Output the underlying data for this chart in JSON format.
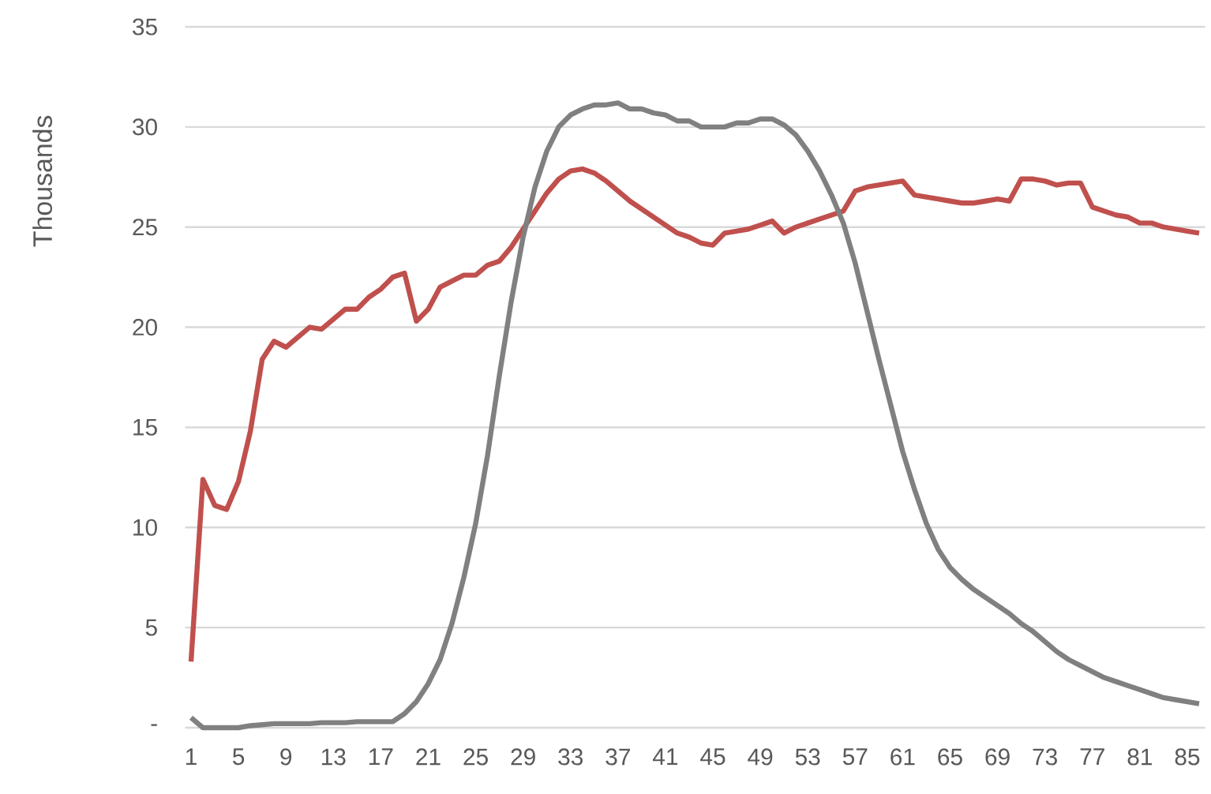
{
  "chart_data": {
    "type": "line",
    "ylabel": "Thousands",
    "categories": [
      "1",
      null,
      null,
      null,
      "5",
      null,
      null,
      null,
      "9",
      null,
      null,
      null,
      "13",
      null,
      null,
      null,
      "17",
      null,
      null,
      null,
      "21",
      null,
      null,
      null,
      "25",
      null,
      null,
      null,
      "29",
      null,
      null,
      null,
      "33",
      null,
      null,
      null,
      "37",
      null,
      null,
      null,
      "41",
      null,
      null,
      null,
      "45",
      null,
      null,
      null,
      "49",
      null,
      null,
      null,
      "53",
      null,
      null,
      null,
      "57",
      null,
      null,
      null,
      "61",
      null,
      null,
      null,
      "65",
      null,
      null,
      null,
      "69",
      null,
      null,
      null,
      "73",
      null,
      null,
      null,
      "77",
      null,
      null,
      null,
      "81",
      null,
      null,
      null,
      "85",
      null
    ],
    "series": [
      {
        "color": "#c0504d",
        "values": [
          3.3,
          12.4,
          11.1,
          10.9,
          12.3,
          14.8,
          18.4,
          19.3,
          19.0,
          19.5,
          20.0,
          19.9,
          20.4,
          20.9,
          20.9,
          21.5,
          21.9,
          22.5,
          22.7,
          20.3,
          20.9,
          22.0,
          22.3,
          22.6,
          22.6,
          23.1,
          23.3,
          24.0,
          24.9,
          25.8,
          26.7,
          27.4,
          27.8,
          27.9,
          27.7,
          27.3,
          26.8,
          26.3,
          25.9,
          25.5,
          25.1,
          24.7,
          24.5,
          24.2,
          24.1,
          24.7,
          24.8,
          24.9,
          25.1,
          25.3,
          24.7,
          25.0,
          25.2,
          25.4,
          25.6,
          25.8,
          26.8,
          27.0,
          27.1,
          27.2,
          27.3,
          26.6,
          26.5,
          26.4,
          26.3,
          26.2,
          26.2,
          26.3,
          26.4,
          26.3,
          27.4,
          27.4,
          27.3,
          27.1,
          27.2,
          27.2,
          26.0,
          25.8,
          25.6,
          25.5,
          25.2,
          25.2,
          25.0,
          24.9,
          24.8,
          24.7
        ]
      },
      {
        "color": "#808080",
        "values": [
          0.5,
          0,
          0,
          0,
          0,
          0.1,
          0.15,
          0.2,
          0.2,
          0.2,
          0.2,
          0.25,
          0.25,
          0.25,
          0.3,
          0.3,
          0.3,
          0.3,
          0.7,
          1.3,
          2.2,
          3.4,
          5.2,
          7.5,
          10.2,
          13.6,
          17.6,
          21.3,
          24.5,
          27.0,
          28.8,
          30.0,
          30.6,
          30.9,
          31.1,
          31.1,
          31.2,
          30.9,
          30.9,
          30.7,
          30.6,
          30.3,
          30.3,
          30.0,
          30.0,
          30.0,
          30.2,
          30.2,
          30.4,
          30.4,
          30.1,
          29.6,
          28.8,
          27.8,
          26.6,
          25.2,
          23.2,
          20.8,
          18.4,
          16.1,
          13.8,
          11.9,
          10.2,
          8.9,
          8.0,
          7.4,
          6.9,
          6.5,
          6.1,
          5.7,
          5.2,
          4.8,
          4.3,
          3.8,
          3.4,
          3.1,
          2.8,
          2.5,
          2.3,
          2.1,
          1.9,
          1.7,
          1.5,
          1.4,
          1.3,
          1.2
        ]
      }
    ],
    "ylim": [
      0,
      35
    ],
    "yticks": [
      {
        "value": 0,
        "label": "-"
      },
      5,
      10,
      15,
      20,
      25,
      30,
      35
    ],
    "grid": "y"
  }
}
